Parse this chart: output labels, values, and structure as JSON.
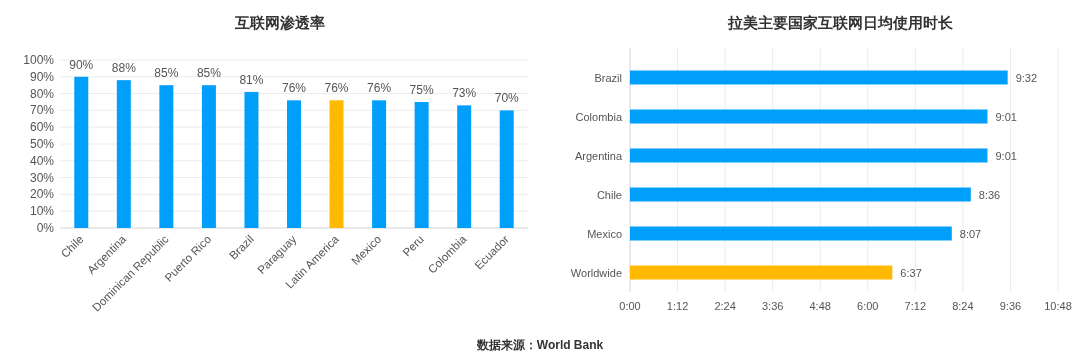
{
  "chart_data": [
    {
      "type": "bar",
      "title": "互联网渗透率",
      "categories": [
        "Chile",
        "Argentina",
        "Dominican Republic",
        "Puerto Rico",
        "Brazil",
        "Paraguay",
        "Latin America",
        "Mexico",
        "Peru",
        "Colombia",
        "Ecuador"
      ],
      "values": [
        90,
        88,
        85,
        85,
        81,
        76,
        76,
        76,
        75,
        73,
        70
      ],
      "colors": [
        "#009ffc",
        "#009ffc",
        "#009ffc",
        "#009ffc",
        "#009ffc",
        "#009ffc",
        "#ffb900",
        "#009ffc",
        "#009ffc",
        "#009ffc",
        "#009ffc"
      ],
      "ylim": [
        0,
        100
      ],
      "yticks": [
        {
          "value": 0,
          "label": "0%"
        },
        {
          "value": 10,
          "label": "10%"
        },
        {
          "value": 20,
          "label": "20%"
        },
        {
          "value": 30,
          "label": "30%"
        },
        {
          "value": 40,
          "label": "40%"
        },
        {
          "value": 50,
          "label": "50%"
        },
        {
          "value": 60,
          "label": "60%"
        },
        {
          "value": 70,
          "label": "70%"
        },
        {
          "value": 80,
          "label": "80%"
        },
        {
          "value": 90,
          "label": "90%"
        },
        {
          "value": 100,
          "label": "100%"
        }
      ],
      "value_labels": [
        "90%",
        "88%",
        "85%",
        "85%",
        "81%",
        "76%",
        "76%",
        "76%",
        "75%",
        "73%",
        "70%"
      ],
      "grid": "y"
    },
    {
      "type": "bar",
      "orientation": "horizontal",
      "title": "拉美主要国家互联网日均使用时长",
      "categories": [
        "Brazil",
        "Colombia",
        "Argentina",
        "Chile",
        "Mexico",
        "Worldwide"
      ],
      "values": [
        9.53,
        9.02,
        9.02,
        8.6,
        8.12,
        6.62
      ],
      "colors": [
        "#009ffc",
        "#009ffc",
        "#009ffc",
        "#009ffc",
        "#009ffc",
        "#ffb900"
      ],
      "value_labels": [
        "9:32",
        "9:01",
        "9:01",
        "8:36",
        "8:07",
        "6:37"
      ],
      "xlim": [
        0,
        10.8
      ],
      "xticks": [
        {
          "value": 0,
          "label": "0:00"
        },
        {
          "value": 1.2,
          "label": "1:12"
        },
        {
          "value": 2.4,
          "label": "2:24"
        },
        {
          "value": 3.6,
          "label": "3:36"
        },
        {
          "value": 4.8,
          "label": "4:48"
        },
        {
          "value": 6,
          "label": "6:00"
        },
        {
          "value": 7.2,
          "label": "7:12"
        },
        {
          "value": 8.4,
          "label": "8:24"
        },
        {
          "value": 9.6,
          "label": "9:36"
        },
        {
          "value": 10.8,
          "label": "10:48"
        }
      ],
      "grid": "x",
      "annotations": [
        "数据来源：World Bank"
      ]
    }
  ]
}
